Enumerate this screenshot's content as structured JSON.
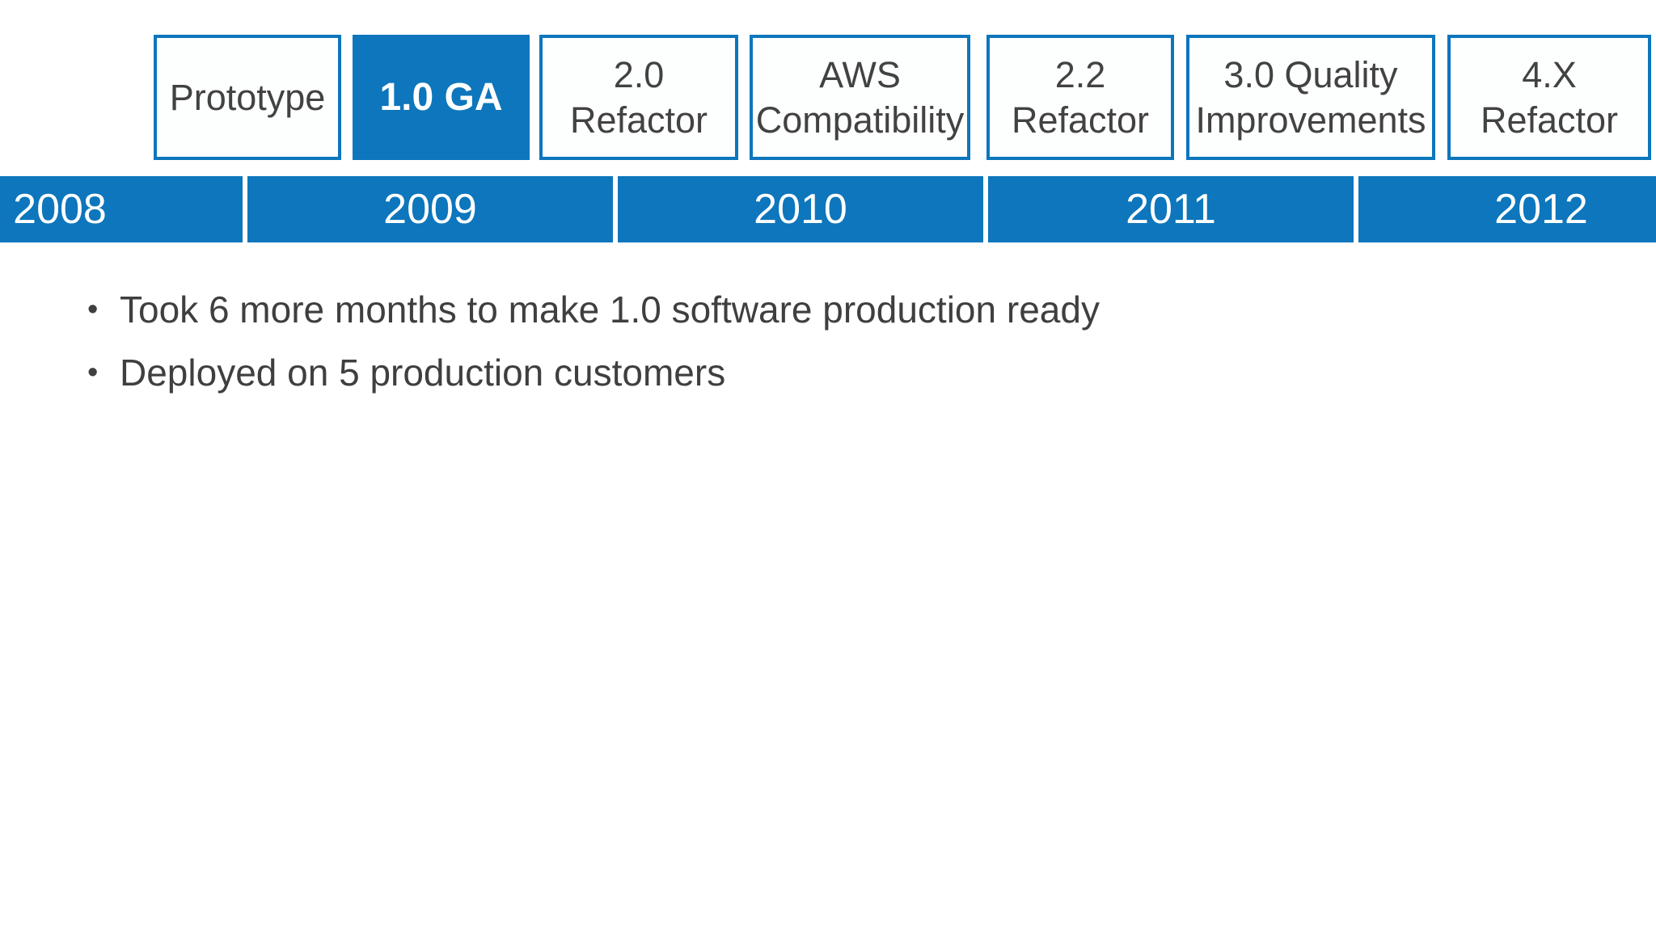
{
  "slide": {
    "milestones": [
      {
        "lines": [
          "Prototype"
        ],
        "filled": false
      },
      {
        "lines": [
          "1.0 GA"
        ],
        "filled": true
      },
      {
        "lines": [
          "2.0",
          "Refactor"
        ],
        "filled": false
      },
      {
        "lines": [
          "AWS",
          "Compatibility"
        ],
        "filled": false
      },
      {
        "lines": [
          "2.2",
          "Refactor"
        ],
        "filled": false
      },
      {
        "lines": [
          "3.0 Quality",
          "Improvements"
        ],
        "filled": false
      },
      {
        "lines": [
          "4.X",
          "Refactor"
        ],
        "filled": false
      }
    ],
    "years": [
      "2008",
      "2009",
      "2010",
      "2011",
      "2012"
    ],
    "bullet_char": "•",
    "bullets": [
      "Took 6 more months to make 1.0 software production ready",
      "Deployed on 5 production customers"
    ],
    "colors": {
      "accent_blue": "#0D76BC",
      "box_fill": "#FDFEFE",
      "milestone_label_gray": "#424242",
      "bullet_text_gray": "#3F3F3F",
      "year_text_white": "#FFFFFF",
      "background_white": "#FFFFFF"
    }
  }
}
